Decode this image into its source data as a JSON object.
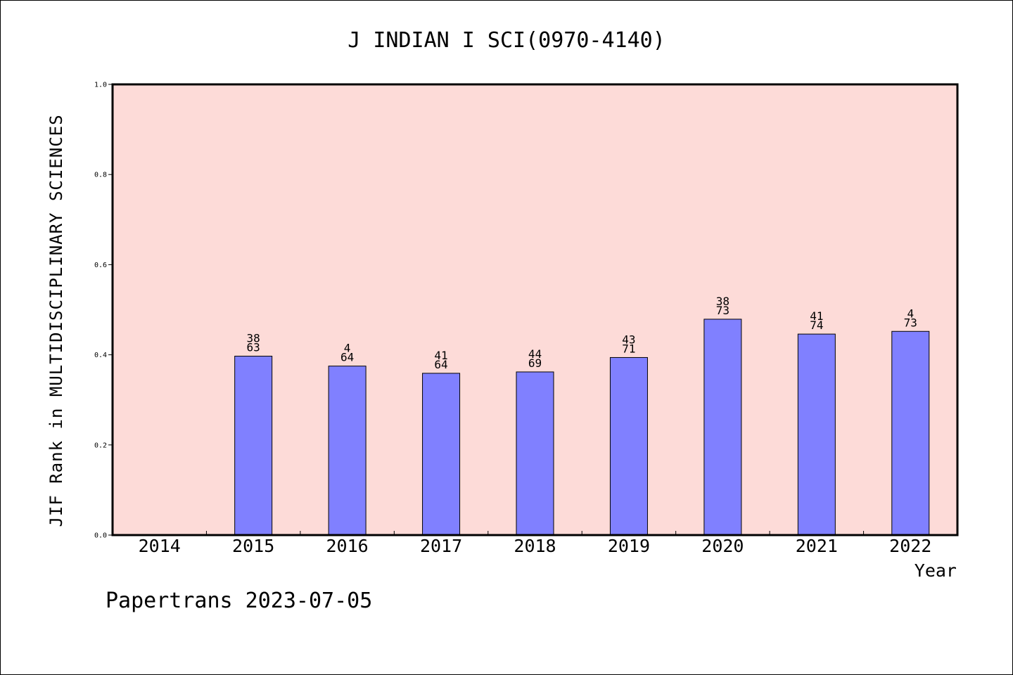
{
  "chart_data": {
    "type": "bar",
    "title": "J INDIAN I SCI(0970-4140)",
    "xlabel": "Year",
    "ylabel": "JIF Rank in MULTIDISCIPLINARY SCIENCES",
    "categories": [
      "2014",
      "2015",
      "2016",
      "2017",
      "2018",
      "2019",
      "2020",
      "2021",
      "2022"
    ],
    "values": [
      null,
      0.397,
      0.375,
      0.359,
      0.362,
      0.394,
      0.479,
      0.446,
      0.452
    ],
    "bar_labels": [
      null,
      [
        "38",
        "63"
      ],
      [
        "4",
        "64"
      ],
      [
        "41",
        "64"
      ],
      [
        "44",
        "69"
      ],
      [
        "43",
        "71"
      ],
      [
        "38",
        "73"
      ],
      [
        "41",
        "74"
      ],
      [
        "4",
        "73"
      ]
    ],
    "ylim": [
      0,
      1.0
    ],
    "yticks": [
      "0.0",
      "0.2",
      "0.4",
      "0.6",
      "0.8",
      "1.0"
    ],
    "grid": false,
    "colors": {
      "plot_background": "#fddbd8",
      "bar_fill": "#8080ff",
      "bar_stroke": "#000000"
    },
    "footer": "Papertrans 2023-07-05"
  }
}
